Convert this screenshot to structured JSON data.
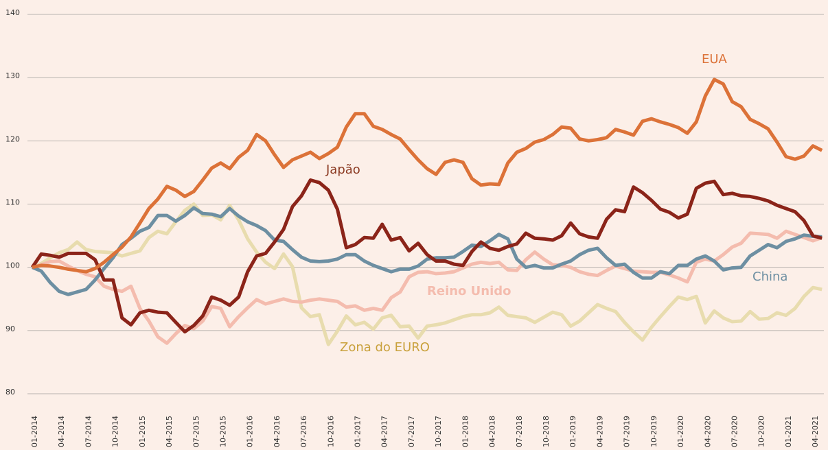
{
  "chart_data": {
    "type": "line",
    "categories": [
      "01-2014",
      null,
      null,
      "04-2014",
      null,
      null,
      "07-2014",
      null,
      null,
      "10-2014",
      null,
      null,
      "01-2015",
      null,
      null,
      "04-2015",
      null,
      null,
      "07-2015",
      null,
      null,
      "10-2015",
      null,
      null,
      "01-2016",
      null,
      null,
      "04-2016",
      null,
      null,
      "07-2016",
      null,
      null,
      "10-2016",
      null,
      null,
      "01-2017",
      null,
      null,
      "04-2017",
      null,
      null,
      "07-2017",
      null,
      null,
      "10-2017",
      null,
      null,
      "01-2018",
      null,
      null,
      "04-2018",
      null,
      null,
      "07-2018",
      null,
      null,
      "10-2018",
      null,
      null,
      "01-2019",
      null,
      null,
      "04-2019",
      null,
      null,
      "07-2019",
      null,
      null,
      "10-2019",
      null,
      null,
      "01-2020",
      null,
      null,
      "04-2020",
      null,
      null,
      "07-2020",
      null,
      null,
      "10-2020",
      null,
      null,
      "01-2021",
      null,
      null,
      "04-2021",
      null
    ],
    "ylim": [
      80,
      140
    ],
    "yticks": [
      80,
      90,
      100,
      110,
      120,
      130,
      140
    ],
    "grid": true,
    "series": [
      {
        "name": "Zona do EURO",
        "color": "#e8dcae",
        "label_color": "#c9a13c",
        "values": [
          100,
          100.6,
          101.5,
          102.3,
          102.8,
          104,
          102.8,
          102.5,
          102.4,
          102.3,
          101.8,
          102.2,
          102.6,
          104.7,
          105.7,
          105.3,
          107.2,
          109,
          110,
          108.2,
          108.3,
          107.5,
          109.8,
          107.5,
          104.5,
          102.4,
          100.8,
          99.8,
          102.1,
          100.1,
          93.6,
          92.2,
          92.5,
          87.8,
          89.9,
          92.3,
          90.9,
          91.3,
          90.2,
          92,
          92.4,
          90.6,
          90.7,
          88.8,
          90.7,
          90.9,
          91.2,
          91.7,
          92.2,
          92.5,
          92.5,
          92.8,
          93.7,
          92.4,
          92.2,
          92,
          91.3,
          92.1,
          92.9,
          92.5,
          90.7,
          91.5,
          92.8,
          94.1,
          93.5,
          93,
          91.3,
          89.8,
          88.5,
          90.5,
          92.2,
          93.8,
          95.3,
          94.9,
          95.4,
          91.2,
          93.1,
          92,
          91.4,
          91.5,
          93,
          91.8,
          91.9,
          92.8,
          92.4,
          93.5,
          95.4,
          96.8,
          96.5
        ]
      },
      {
        "name": "Reino Unido",
        "color": "#f4bcae",
        "label_color": "#f4bcae",
        "values": [
          100,
          100.4,
          100.9,
          101,
          100.2,
          99.5,
          98.9,
          98.5,
          97,
          96.5,
          96.2,
          97,
          93.5,
          91.5,
          89,
          88,
          89.5,
          90.8,
          90.3,
          91.5,
          93.8,
          93.5,
          90.6,
          92.2,
          93.6,
          94.9,
          94.2,
          94.6,
          95,
          94.6,
          94.5,
          94.8,
          95,
          94.8,
          94.6,
          93.7,
          93.9,
          93.2,
          93.5,
          93.2,
          95.2,
          96.1,
          98.5,
          99.2,
          99.3,
          99,
          99.1,
          99.3,
          99.9,
          100.5,
          100.8,
          100.6,
          100.8,
          99.6,
          99.5,
          101.2,
          102.4,
          101.3,
          100.4,
          100.3,
          100,
          99.3,
          98.9,
          98.7,
          99.5,
          100.2,
          99.8,
          99.4,
          99.3,
          99.2,
          99.2,
          98.8,
          98.3,
          97.7,
          100.8,
          101.3,
          101,
          102,
          103.2,
          103.8,
          105.4,
          105.3,
          105.2,
          104.6,
          105.7,
          105.2,
          104.7,
          104.2,
          104.7
        ]
      },
      {
        "name": "China",
        "color": "#6d8fa2",
        "label_color": "#6d8fa2",
        "values": [
          100,
          99.4,
          97.6,
          96.2,
          95.7,
          96.1,
          96.5,
          98,
          99.8,
          101.5,
          103.6,
          104.6,
          105.7,
          106.3,
          108.2,
          108.2,
          107.3,
          108.2,
          109.4,
          108.5,
          108.4,
          108,
          109.3,
          108.1,
          107.2,
          106.6,
          105.8,
          104.3,
          104.1,
          102.8,
          101.6,
          101,
          100.9,
          101,
          101.3,
          102,
          102,
          101,
          100.3,
          99.8,
          99.3,
          99.7,
          99.7,
          100.2,
          101.3,
          101.5,
          101.5,
          101.6,
          102.5,
          103.5,
          103.3,
          104.2,
          105.2,
          104.5,
          101.3,
          100,
          100.3,
          99.9,
          99.9,
          100.5,
          101,
          102,
          102.7,
          103,
          101.5,
          100.3,
          100.5,
          99.2,
          98.3,
          98.3,
          99.3,
          99,
          100.3,
          100.3,
          101.3,
          101.8,
          101,
          99.6,
          99.9,
          100,
          101.8,
          102.7,
          103.6,
          103.1,
          104.1,
          104.5,
          105.1,
          104.9,
          104.8
        ]
      },
      {
        "name": "Japão",
        "color": "#8b2419",
        "label_color": "#8b3a22",
        "values": [
          100,
          102.1,
          101.9,
          101.6,
          102.2,
          102.2,
          102.2,
          101.2,
          98,
          98,
          92,
          90.9,
          92.8,
          93.2,
          92.9,
          92.8,
          91.3,
          89.8,
          90.8,
          92.3,
          95.3,
          94.8,
          94,
          95.3,
          99.3,
          101.8,
          102.2,
          104,
          106,
          109.6,
          111.3,
          113.8,
          113.4,
          112.2,
          109.2,
          103.1,
          103.6,
          104.7,
          104.6,
          106.8,
          104.3,
          104.7,
          102.6,
          103.8,
          102,
          101,
          101,
          100.5,
          100.3,
          102.5,
          104,
          103,
          102.7,
          103.3,
          103.7,
          105.4,
          104.6,
          104.5,
          104.3,
          105,
          107,
          105.3,
          104.8,
          104.6,
          107.6,
          109.1,
          108.8,
          112.7,
          111.8,
          110.6,
          109.2,
          108.7,
          107.8,
          108.4,
          112.5,
          113.3,
          113.6,
          111.5,
          111.7,
          111.3,
          111.2,
          110.9,
          110.5,
          109.8,
          109.3,
          108.8,
          107.4,
          105,
          104.6
        ]
      },
      {
        "name": "EUA",
        "color": "#dc7238",
        "label_color": "#dc7238",
        "values": [
          100,
          100.3,
          100.2,
          100,
          99.7,
          99.5,
          99.3,
          99.8,
          100.8,
          102,
          103.2,
          104.8,
          107,
          109.3,
          110.8,
          112.8,
          112.2,
          111.2,
          112,
          113.8,
          115.7,
          116.5,
          115.6,
          117.4,
          118.5,
          121,
          120,
          117.8,
          115.8,
          117,
          117.6,
          118.2,
          117.2,
          118,
          119,
          122.2,
          124.3,
          124.3,
          122.3,
          121.8,
          121,
          120.3,
          118.6,
          117,
          115.6,
          114.7,
          116.6,
          117,
          116.6,
          114,
          113,
          113.2,
          113.1,
          116.5,
          118.2,
          118.8,
          119.8,
          120.2,
          121,
          122.2,
          122,
          120.3,
          120,
          120.2,
          120.5,
          121.8,
          121.4,
          120.9,
          123.1,
          123.5,
          123,
          122.6,
          122.1,
          121.2,
          123,
          127.1,
          129.7,
          129,
          126.2,
          125.4,
          123.4,
          122.7,
          121.9,
          119.8,
          117.5,
          117.1,
          117.6,
          119.2,
          118.5
        ]
      }
    ]
  }
}
